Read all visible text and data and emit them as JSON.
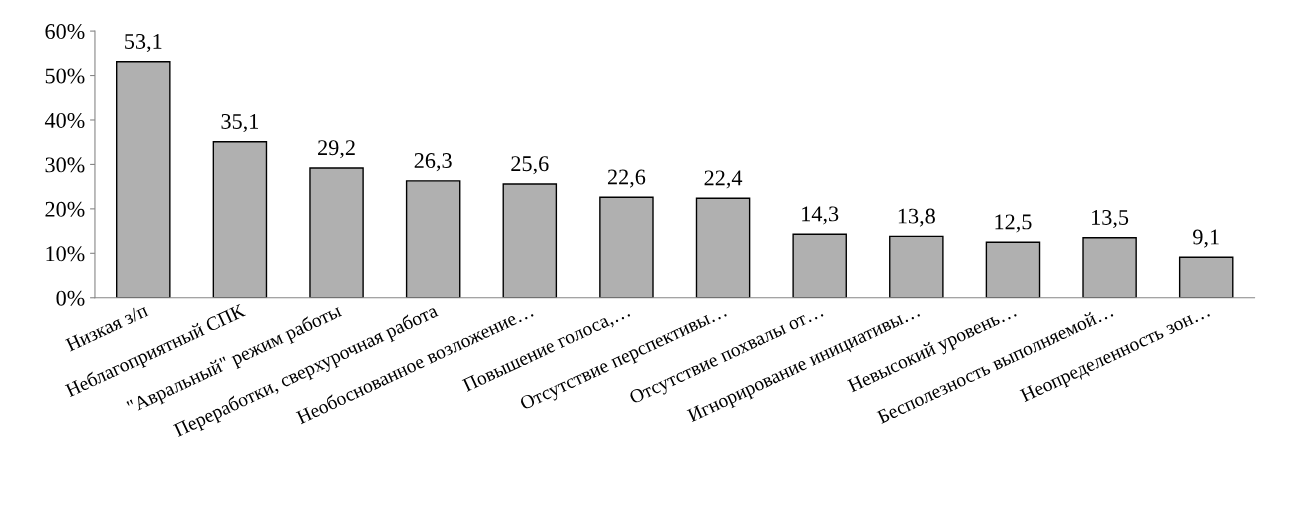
{
  "chart_data": {
    "type": "bar",
    "categories": [
      "Низкая з/п",
      "Неблагоприятный СПК",
      "\"Авральный\" режим работы",
      "Переработки, сверхурочная работа",
      "Необоснованное возложение…",
      "Повышение голоса,…",
      "Отсутствие перспективы…",
      "Отсутствие похвалы от…",
      "Игнорирование инициативы…",
      "Невысокий уровень…",
      "Бесполезность выполняемой…",
      "Неопределенность зон…"
    ],
    "values": [
      53.1,
      35.1,
      29.2,
      26.3,
      25.6,
      22.6,
      22.4,
      14.3,
      13.8,
      12.5,
      13.5,
      9.1
    ],
    "value_labels": [
      "53,1",
      "35,1",
      "29,2",
      "26,3",
      "25,6",
      "22,6",
      "22,4",
      "14,3",
      "13,8",
      "12,5",
      "13,5",
      "9,1"
    ],
    "color": "#b0b0b0",
    "ylim": [
      0,
      60
    ],
    "yticks": [
      {
        "value": 0,
        "label": "0%"
      },
      {
        "value": 10,
        "label": "10%"
      },
      {
        "value": 20,
        "label": "20%"
      },
      {
        "value": 30,
        "label": "30%"
      },
      {
        "value": 40,
        "label": "40%"
      },
      {
        "value": 50,
        "label": "50%"
      },
      {
        "value": 60,
        "label": "60%"
      }
    ],
    "grid": false,
    "legend": false
  }
}
